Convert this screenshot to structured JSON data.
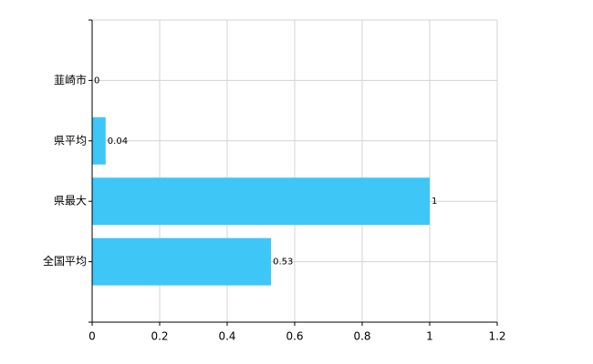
{
  "chart_data": {
    "type": "barh",
    "categories": [
      "韮崎市",
      "県平均",
      "県最大",
      "全国平均"
    ],
    "values": [
      0,
      0.04,
      1,
      0.53
    ],
    "color": "#3ec6f7",
    "xlim": [
      0,
      1.2
    ],
    "xticks": [
      0,
      0.2,
      0.4,
      0.6,
      0.8,
      1,
      1.2
    ],
    "grid": true
  }
}
